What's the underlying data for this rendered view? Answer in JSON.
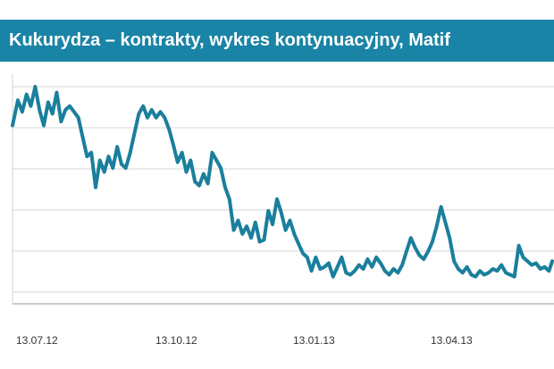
{
  "title": "Kukurydza – kontrakty, wykres kontynuacyjny, Matif",
  "colors": {
    "title_bg": "#1a84a6",
    "line": "#1a7f9c",
    "grid": "#d4d4d4",
    "axis": "#9a9a9a"
  },
  "chart_data": {
    "type": "line",
    "title": "Kukurydza – kontrakty, wykres kontynuacyjny, Matif",
    "xlabel": "",
    "ylabel": "",
    "x_tick_labels": [
      "13.07.12",
      "13.10.12",
      "13.01.13",
      "13.04.13"
    ],
    "x_range": [
      0,
      1
    ],
    "y_range": [
      0,
      1
    ],
    "grid": "horizontal",
    "series": [
      {
        "x": [
          0.0,
          0.01,
          0.018,
          0.026,
          0.034,
          0.042,
          0.05,
          0.058,
          0.066,
          0.074,
          0.082,
          0.09,
          0.098,
          0.106,
          0.114,
          0.122,
          0.13,
          0.138,
          0.146,
          0.154,
          0.162,
          0.17,
          0.178,
          0.186,
          0.194,
          0.202,
          0.21,
          0.218,
          0.226,
          0.234,
          0.242,
          0.25,
          0.258,
          0.266,
          0.274,
          0.282,
          0.29,
          0.298,
          0.306,
          0.314,
          0.322,
          0.33,
          0.338,
          0.346,
          0.354,
          0.362,
          0.37,
          0.378,
          0.386,
          0.394,
          0.402,
          0.41,
          0.418,
          0.426,
          0.434,
          0.442,
          0.45,
          0.458,
          0.466,
          0.474,
          0.482,
          0.49,
          0.498,
          0.506,
          0.514,
          0.522,
          0.53,
          0.538,
          0.546,
          0.554,
          0.562,
          0.57,
          0.578,
          0.586,
          0.594,
          0.602,
          0.61,
          0.618,
          0.626,
          0.634,
          0.642,
          0.65,
          0.658,
          0.666,
          0.674,
          0.682,
          0.69,
          0.698,
          0.706,
          0.714,
          0.722,
          0.73,
          0.738,
          0.746,
          0.754,
          0.762,
          0.77,
          0.778,
          0.786,
          0.794,
          0.802,
          0.81,
          0.818,
          0.826,
          0.834,
          0.842,
          0.85,
          0.858,
          0.866,
          0.874,
          0.882,
          0.89,
          0.898,
          0.906,
          0.914,
          0.922,
          0.93,
          0.938,
          0.946,
          0.954,
          0.962,
          0.97,
          0.978,
          0.986,
          0.994,
          1.0
        ],
        "y": [
          0.8,
          0.93,
          0.87,
          0.96,
          0.9,
          1.0,
          0.88,
          0.8,
          0.92,
          0.86,
          0.97,
          0.82,
          0.88,
          0.9,
          0.87,
          0.84,
          0.74,
          0.64,
          0.66,
          0.48,
          0.62,
          0.56,
          0.64,
          0.58,
          0.69,
          0.6,
          0.58,
          0.66,
          0.76,
          0.86,
          0.9,
          0.84,
          0.88,
          0.84,
          0.87,
          0.84,
          0.78,
          0.7,
          0.61,
          0.66,
          0.56,
          0.62,
          0.51,
          0.49,
          0.55,
          0.5,
          0.66,
          0.62,
          0.58,
          0.48,
          0.42,
          0.26,
          0.31,
          0.24,
          0.28,
          0.22,
          0.3,
          0.2,
          0.21,
          0.36,
          0.29,
          0.42,
          0.35,
          0.26,
          0.31,
          0.24,
          0.19,
          0.14,
          0.12,
          0.05,
          0.12,
          0.06,
          0.07,
          0.09,
          0.02,
          0.07,
          0.12,
          0.04,
          0.03,
          0.05,
          0.08,
          0.06,
          0.11,
          0.07,
          0.12,
          0.09,
          0.05,
          0.03,
          0.06,
          0.04,
          0.08,
          0.15,
          0.22,
          0.17,
          0.13,
          0.11,
          0.15,
          0.2,
          0.28,
          0.38,
          0.3,
          0.22,
          0.1,
          0.06,
          0.04,
          0.07,
          0.03,
          0.02,
          0.05,
          0.03,
          0.04,
          0.06,
          0.05,
          0.08,
          0.04,
          0.03,
          0.02,
          0.18,
          0.12,
          0.1,
          0.08,
          0.09,
          0.06,
          0.07,
          0.05,
          0.1
        ]
      }
    ]
  }
}
